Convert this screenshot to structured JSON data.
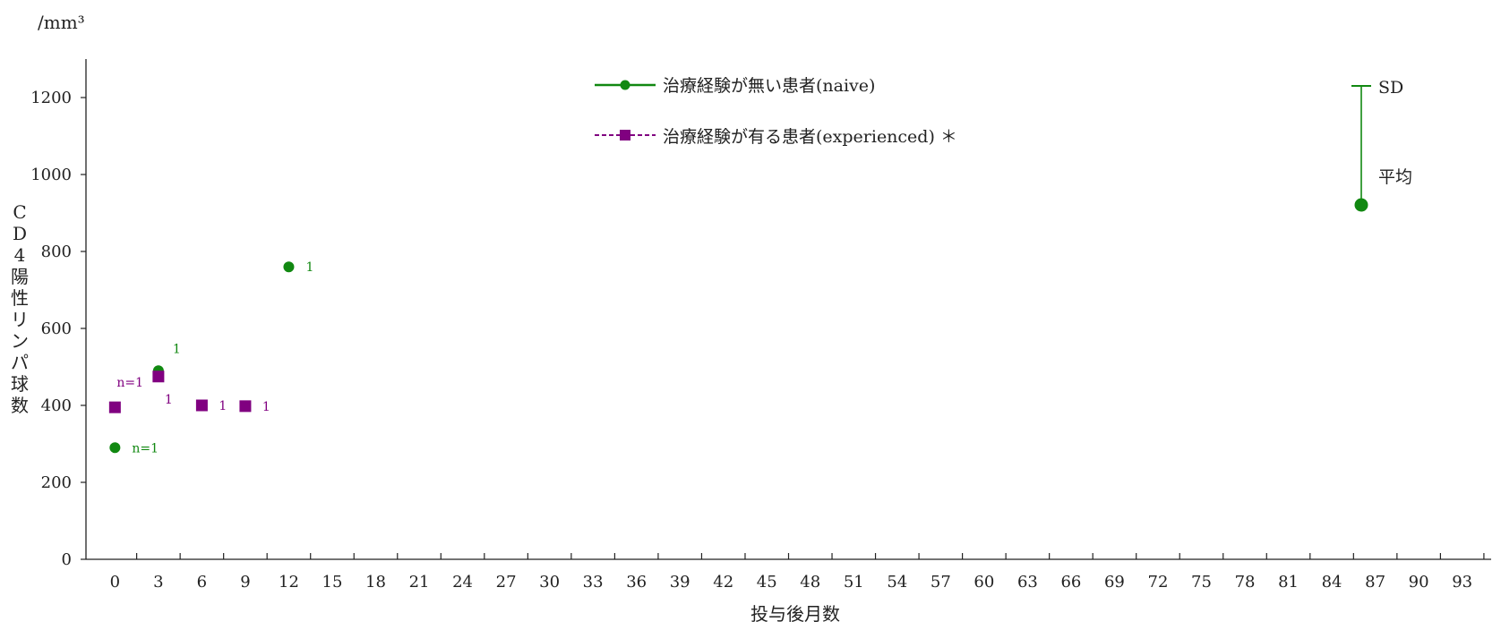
{
  "chart_data": {
    "type": "scatter",
    "unit_label": "/mm³",
    "ylabel": "CD4陽性リンパ球数",
    "xlabel": "投与後月数",
    "ylim": [
      0,
      1300
    ],
    "yticks": [
      0,
      200,
      400,
      600,
      800,
      1000,
      1200
    ],
    "xlim": [
      -2,
      95
    ],
    "xticks": [
      0,
      3,
      6,
      9,
      12,
      15,
      18,
      21,
      24,
      27,
      30,
      33,
      36,
      39,
      42,
      45,
      48,
      51,
      54,
      57,
      60,
      63,
      66,
      69,
      72,
      75,
      78,
      81,
      84,
      87,
      90,
      93
    ],
    "grid": false,
    "legend_position": "top-center",
    "series": [
      {
        "name": "治療経験が無い患者(naive)",
        "color": "#118811",
        "marker": "circle",
        "line": "solid",
        "points": [
          {
            "x": 0,
            "y": 290,
            "n": "n=1"
          },
          {
            "x": 3,
            "y": 490,
            "n": "1"
          },
          {
            "x": 12,
            "y": 760,
            "n": "1"
          }
        ]
      },
      {
        "name": "治療経験が有る患者(experienced) ＊",
        "color": "#800080",
        "marker": "square",
        "line": "dashed",
        "points": [
          {
            "x": 0,
            "y": 395,
            "n": "n=1"
          },
          {
            "x": 3,
            "y": 475,
            "n": "1"
          },
          {
            "x": 6,
            "y": 400,
            "n": "1"
          },
          {
            "x": 9,
            "y": 398,
            "n": "1"
          }
        ]
      }
    ],
    "key": {
      "sd_label": "SD",
      "mean_label": "平均",
      "color": "#118811"
    }
  }
}
